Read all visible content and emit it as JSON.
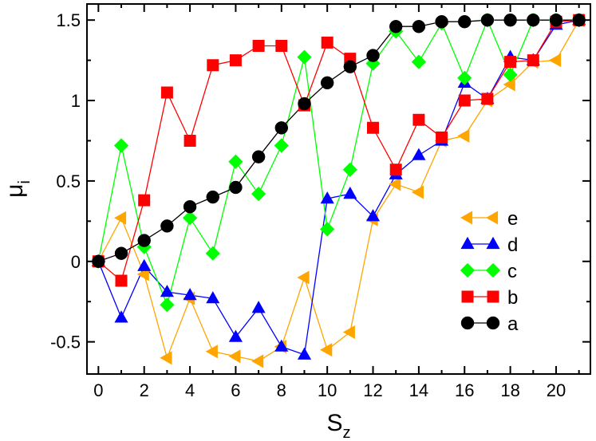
{
  "chart_data": {
    "type": "line",
    "xlabel": "S",
    "xlabel_sub": "z",
    "ylabel": "μ",
    "ylabel_sub": "i",
    "xlim": [
      -0.5,
      21.5
    ],
    "ylim": [
      -0.7,
      1.6
    ],
    "xticks": [
      0,
      2,
      4,
      6,
      8,
      10,
      12,
      14,
      16,
      18,
      20
    ],
    "xtick_labels": [
      "0",
      "2",
      "4",
      "6",
      "8",
      "10",
      "12",
      "14",
      "16",
      "18",
      "20"
    ],
    "yticks": [
      -0.5,
      0,
      0.5,
      1,
      1.5
    ],
    "ytick_labels": [
      "-0.5",
      "0",
      "0.5",
      "1",
      "1.5"
    ],
    "grid": false,
    "legend_position": "right",
    "x": [
      0,
      1,
      2,
      3,
      4,
      5,
      6,
      7,
      8,
      9,
      10,
      11,
      12,
      13,
      14,
      15,
      16,
      17,
      18,
      19,
      20,
      21
    ],
    "series": [
      {
        "name": "e",
        "color": "#ffa500",
        "marker": "triangle-left",
        "values": [
          0,
          0.27,
          -0.08,
          -0.6,
          -0.23,
          -0.56,
          -0.59,
          -0.62,
          -0.53,
          -0.1,
          -0.55,
          -0.44,
          0.26,
          0.48,
          0.43,
          0.75,
          0.78,
          1.0,
          1.1,
          1.24,
          1.25,
          1.5
        ]
      },
      {
        "name": "d",
        "color": "#0000ff",
        "marker": "triangle-up",
        "values": [
          0,
          -0.35,
          -0.03,
          -0.19,
          -0.21,
          -0.23,
          -0.47,
          -0.29,
          -0.53,
          -0.58,
          0.39,
          0.42,
          0.28,
          0.54,
          0.66,
          0.75,
          1.11,
          1.01,
          1.27,
          1.25,
          1.47,
          1.5
        ]
      },
      {
        "name": "c",
        "color": "#00ff00",
        "marker": "diamond",
        "values": [
          0,
          0.72,
          0.09,
          -0.27,
          0.27,
          0.05,
          0.62,
          0.42,
          0.72,
          1.27,
          0.2,
          0.57,
          1.23,
          1.43,
          1.24,
          1.48,
          1.14,
          1.5,
          1.16,
          1.5,
          1.5,
          1.5
        ]
      },
      {
        "name": "b",
        "color": "#ff0000",
        "marker": "square",
        "values": [
          0,
          -0.12,
          0.38,
          1.05,
          0.75,
          1.22,
          1.25,
          1.34,
          1.34,
          0.97,
          1.36,
          1.26,
          0.83,
          0.57,
          0.88,
          0.77,
          1.0,
          1.01,
          1.24,
          1.25,
          1.49,
          1.5
        ]
      },
      {
        "name": "a",
        "color": "#000000",
        "marker": "circle",
        "values": [
          0,
          0.05,
          0.13,
          0.22,
          0.34,
          0.4,
          0.46,
          0.65,
          0.83,
          0.98,
          1.11,
          1.21,
          1.28,
          1.46,
          1.46,
          1.49,
          1.49,
          1.5,
          1.5,
          1.5,
          1.5,
          1.5
        ]
      }
    ]
  }
}
